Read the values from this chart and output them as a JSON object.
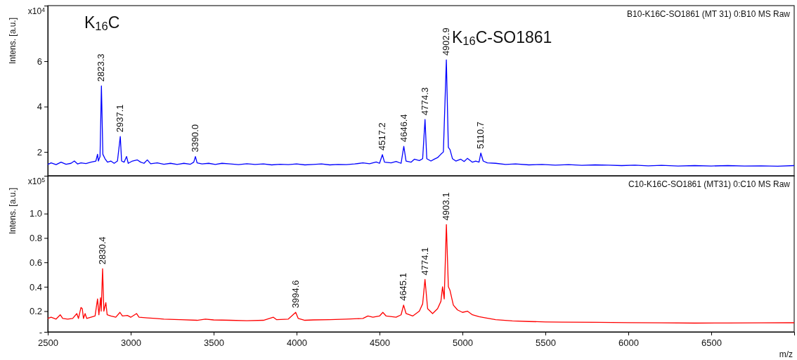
{
  "chart_data": [
    {
      "type": "line",
      "ylabel": "Intens. [a.u.]",
      "xlim": [
        2500,
        7000
      ],
      "xticks": [
        2500,
        3000,
        3500,
        4000,
        4500,
        5000,
        5500,
        6000,
        6500
      ],
      "ylim": [
        0.95,
        8.45
      ],
      "yticks": [
        2,
        4,
        6
      ],
      "tick_labels": "y",
      "grid": false,
      "marker": "none",
      "line_style": "solid",
      "annotations": [
        "B10-K16C-SO1861 (MT 31) 0:B10 MS Raw",
        "x10$^{4}$",
        "K$_{16}$C",
        "K$_{16}$C-SO1861",
        {
          "text": "2823.3",
          "x": 2823.3,
          "y": 4.91
        },
        {
          "text": "2937.1",
          "x": 2937.1,
          "y": 2.68
        },
        {
          "text": "3390.0",
          "x": 3390.0,
          "y": 1.8
        },
        {
          "text": "4517.2",
          "x": 4517.2,
          "y": 1.88
        },
        {
          "text": "4646.4",
          "x": 4646.4,
          "y": 2.25
        },
        {
          "text": "4774.3",
          "x": 4774.3,
          "y": 3.43
        },
        {
          "text": "4902.9",
          "x": 4902.9,
          "y": 6.06
        },
        {
          "text": "5110.7",
          "x": 5110.7,
          "y": 1.95
        }
      ],
      "series": [
        {
          "color": "#0000ff",
          "x": [
            2500,
            2520,
            2550,
            2580,
            2610,
            2640,
            2660,
            2680,
            2700,
            2730,
            2760,
            2790,
            2800,
            2805,
            2815,
            2823.3,
            2832,
            2845,
            2860,
            2880,
            2900,
            2920,
            2937.1,
            2945,
            2960,
            2975,
            2985,
            3010,
            3040,
            3060,
            3080,
            3100,
            3120,
            3160,
            3200,
            3240,
            3280,
            3320,
            3360,
            3380,
            3390,
            3400,
            3430,
            3470,
            3510,
            3550,
            3600,
            3650,
            3700,
            3750,
            3800,
            3850,
            3900,
            3950,
            4000,
            4050,
            4100,
            4150,
            4200,
            4250,
            4300,
            4350,
            4400,
            4440,
            4480,
            4500,
            4517.2,
            4530,
            4570,
            4600,
            4630,
            4646.4,
            4660,
            4690,
            4710,
            4740,
            4760,
            4774.3,
            4785,
            4810,
            4830,
            4850,
            4870,
            4885,
            4902.9,
            4915,
            4925,
            4940,
            4960,
            4990,
            5010,
            5030,
            5060,
            5080,
            5100,
            5110.7,
            5125,
            5150,
            5200,
            5260,
            5320,
            5400,
            5480,
            5560,
            5640,
            5720,
            5800,
            5880,
            5960,
            6040,
            6120,
            6200,
            6300,
            6400,
            6500,
            6600,
            6700,
            6800,
            6900,
            7000
          ],
          "values": [
            1.45,
            1.52,
            1.44,
            1.55,
            1.46,
            1.5,
            1.6,
            1.47,
            1.52,
            1.49,
            1.55,
            1.6,
            1.9,
            1.6,
            1.8,
            4.91,
            1.9,
            1.7,
            1.55,
            1.6,
            1.5,
            1.6,
            2.68,
            1.6,
            1.55,
            1.8,
            1.5,
            1.6,
            1.65,
            1.55,
            1.5,
            1.65,
            1.48,
            1.52,
            1.46,
            1.5,
            1.45,
            1.5,
            1.46,
            1.55,
            1.8,
            1.52,
            1.47,
            1.5,
            1.45,
            1.5,
            1.47,
            1.44,
            1.48,
            1.45,
            1.47,
            1.43,
            1.46,
            1.44,
            1.47,
            1.43,
            1.45,
            1.47,
            1.43,
            1.45,
            1.44,
            1.47,
            1.52,
            1.48,
            1.56,
            1.5,
            1.88,
            1.55,
            1.52,
            1.58,
            1.5,
            2.25,
            1.6,
            1.55,
            1.68,
            1.62,
            1.7,
            3.43,
            1.7,
            1.6,
            1.68,
            1.75,
            1.9,
            2.0,
            6.06,
            2.2,
            2.1,
            1.7,
            1.6,
            1.68,
            1.58,
            1.72,
            1.55,
            1.6,
            1.55,
            1.95,
            1.6,
            1.52,
            1.5,
            1.45,
            1.47,
            1.43,
            1.45,
            1.42,
            1.44,
            1.41,
            1.43,
            1.42,
            1.4,
            1.42,
            1.39,
            1.41,
            1.38,
            1.4,
            1.38,
            1.4,
            1.38,
            1.39,
            1.37,
            1.4
          ]
        }
      ]
    },
    {
      "type": "line",
      "ylabel": "Intens. [a.u.]",
      "xlabel": "m/z",
      "xlim": [
        2500,
        7000
      ],
      "xticks": [
        2500,
        3000,
        3500,
        4000,
        4500,
        5000,
        5500,
        6000,
        6500
      ],
      "ylim": [
        0.03,
        1.31
      ],
      "yticks": [
        {
          "value": 0.03,
          "label": "-"
        },
        0.2,
        0.4,
        0.6,
        0.8,
        {
          "value": 1.0,
          "label": "1.0"
        }
      ],
      "grid": false,
      "marker": "none",
      "line_style": "solid",
      "annotations": [
        "C10-K16C-SO1861 (MT31) 0:C10 MS Raw",
        "x10$^{5}$",
        {
          "text": "2830.4",
          "x": 2830.4,
          "y": 0.548
        },
        {
          "text": "3994.6",
          "x": 3994.6,
          "y": 0.19
        },
        {
          "text": "4645.1",
          "x": 4645.1,
          "y": 0.25
        },
        {
          "text": "4774.1",
          "x": 4774.1,
          "y": 0.46
        },
        {
          "text": "4903.1",
          "x": 4903.1,
          "y": 0.91
        }
      ],
      "series": [
        {
          "color": "#ff0000",
          "x": [
            2500,
            2520,
            2550,
            2575,
            2590,
            2620,
            2650,
            2675,
            2685,
            2700,
            2708,
            2715,
            2725,
            2735,
            2760,
            2785,
            2800,
            2808,
            2818,
            2822,
            2830.4,
            2838,
            2850,
            2858,
            2880,
            2910,
            2935,
            2950,
            2980,
            3000,
            3035,
            3050,
            3100,
            3150,
            3200,
            3300,
            3400,
            3450,
            3500,
            3600,
            3700,
            3800,
            3860,
            3880,
            3950,
            3994.6,
            4010,
            4050,
            4100,
            4200,
            4300,
            4400,
            4430,
            4460,
            4500,
            4520,
            4540,
            4600,
            4630,
            4645.1,
            4660,
            4700,
            4740,
            4760,
            4774.1,
            4790,
            4820,
            4850,
            4870,
            4880,
            4890,
            4903.1,
            4915,
            4925,
            4945,
            4970,
            5000,
            5030,
            5060,
            5100,
            5140,
            5200,
            5300,
            5400,
            5500,
            5600,
            5800,
            6000,
            6200,
            6400,
            6600,
            6800,
            7000
          ],
          "values": [
            0.14,
            0.15,
            0.135,
            0.17,
            0.14,
            0.135,
            0.14,
            0.18,
            0.14,
            0.23,
            0.22,
            0.14,
            0.18,
            0.14,
            0.15,
            0.16,
            0.3,
            0.17,
            0.31,
            0.2,
            0.548,
            0.2,
            0.27,
            0.17,
            0.16,
            0.15,
            0.19,
            0.16,
            0.165,
            0.15,
            0.18,
            0.15,
            0.145,
            0.14,
            0.135,
            0.13,
            0.125,
            0.135,
            0.128,
            0.125,
            0.122,
            0.125,
            0.15,
            0.13,
            0.135,
            0.19,
            0.14,
            0.125,
            0.128,
            0.13,
            0.135,
            0.14,
            0.16,
            0.15,
            0.16,
            0.19,
            0.16,
            0.15,
            0.17,
            0.25,
            0.18,
            0.16,
            0.2,
            0.26,
            0.46,
            0.22,
            0.18,
            0.22,
            0.28,
            0.4,
            0.3,
            0.91,
            0.4,
            0.37,
            0.25,
            0.21,
            0.19,
            0.2,
            0.17,
            0.155,
            0.145,
            0.13,
            0.12,
            0.115,
            0.112,
            0.11,
            0.108,
            0.106,
            0.104,
            0.102,
            0.103,
            0.104,
            0.105
          ]
        }
      ]
    }
  ]
}
